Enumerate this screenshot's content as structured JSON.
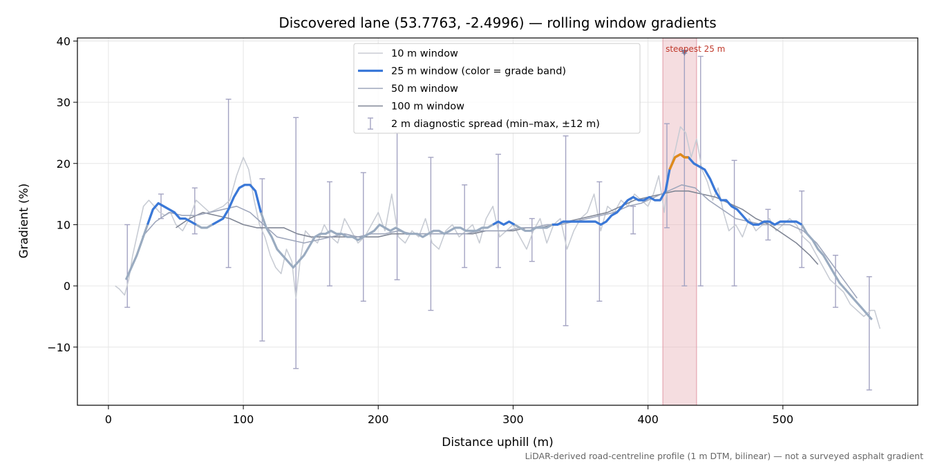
{
  "chart_data": {
    "type": "line",
    "title": "Discovered lane (53.7763, -2.4996) — rolling window gradients",
    "xlabel": "Distance uphill (m)",
    "ylabel": "Gradient (%)",
    "xlim": [
      -23,
      600
    ],
    "ylim": [
      -19.5,
      40.5
    ],
    "xticks": [
      0,
      100,
      200,
      300,
      400,
      500
    ],
    "xtick_labels": [
      "0",
      "100",
      "200",
      "300",
      "400",
      "500"
    ],
    "yticks": [
      -10,
      0,
      10,
      20,
      30,
      40
    ],
    "ytick_labels": [
      "−10",
      "0",
      "10",
      "20",
      "30",
      "40"
    ],
    "grid": true,
    "legend_position": "top-center",
    "footnote": "LiDAR-derived road-centreline profile (1 m DTM, bilinear) — not a surveyed asphalt gradient",
    "annotations": [
      {
        "text": "steepest 25 m",
        "x_start": 411,
        "x_end": 436,
        "peak_x": 427,
        "peak_y": 38,
        "color": "#cc2233",
        "band_color": "#e8b4bb"
      }
    ],
    "legend": [
      {
        "label": "10 m window",
        "color": "#c8ccd4",
        "style": "line"
      },
      {
        "label": "25 m window (color = grade band)",
        "color": "#3a78d8",
        "style": "thick-line"
      },
      {
        "label": "50 m window",
        "color": "#9ea6bb",
        "style": "line"
      },
      {
        "label": "100 m window",
        "color": "#808695",
        "style": "line"
      },
      {
        "label": "2 m diagnostic spread (min–max, ±12 m)",
        "color": "#a3a3c2",
        "style": "errorbar"
      }
    ],
    "series": [
      {
        "name": "10 m window",
        "color": "#c8ccd4",
        "x": [
          5,
          8,
          12,
          15,
          18,
          22,
          26,
          30,
          34,
          38,
          42,
          46,
          50,
          55,
          60,
          65,
          70,
          75,
          80,
          85,
          90,
          95,
          100,
          104,
          108,
          112,
          116,
          120,
          124,
          128,
          132,
          136,
          139,
          142,
          146,
          150,
          155,
          160,
          165,
          170,
          175,
          180,
          185,
          190,
          195,
          200,
          205,
          210,
          215,
          220,
          225,
          230,
          235,
          240,
          245,
          250,
          255,
          260,
          265,
          270,
          275,
          280,
          285,
          290,
          295,
          300,
          305,
          310,
          315,
          320,
          325,
          330,
          335,
          340,
          345,
          350,
          355,
          360,
          365,
          370,
          375,
          380,
          385,
          390,
          395,
          400,
          404,
          408,
          412,
          416,
          420,
          424,
          428,
          432,
          436,
          440,
          444,
          448,
          452,
          456,
          460,
          465,
          470,
          475,
          480,
          485,
          490,
          495,
          500,
          505,
          510,
          515,
          520,
          525,
          530,
          535,
          540,
          545,
          550,
          555,
          560,
          565,
          568,
          572
        ],
        "y": [
          0,
          -0.5,
          -1.5,
          1,
          5,
          9,
          13,
          14,
          13,
          12,
          11.5,
          12,
          10,
          9,
          11,
          14,
          13,
          12,
          12.5,
          13,
          14,
          18,
          21,
          19,
          14,
          10,
          8,
          5,
          3,
          2,
          6,
          4,
          -2,
          4,
          9,
          8,
          7,
          10,
          8,
          7,
          11,
          9,
          7,
          8,
          10,
          12,
          9,
          15,
          8,
          7,
          9,
          8,
          11,
          7,
          6,
          9,
          10,
          8,
          9,
          10,
          7,
          11,
          13,
          8,
          9,
          10,
          8,
          6,
          9,
          11,
          7,
          10,
          11,
          6,
          9,
          11,
          12,
          15,
          9,
          13,
          12,
          14,
          13,
          15,
          14,
          13,
          15,
          18,
          12,
          19,
          22,
          26,
          25,
          21,
          24,
          19,
          17,
          14,
          16,
          12,
          9,
          10,
          8,
          11,
          9,
          10,
          11,
          9,
          10,
          11,
          10,
          8,
          7,
          5,
          3,
          1,
          0,
          -1,
          -3,
          -4,
          -5,
          -4,
          -4,
          -7
        ]
      },
      {
        "name": "25 m window",
        "color": "#3a78d8",
        "thick": true,
        "highlight": {
          "from_x": 416,
          "to_x": 430,
          "color": "#e08a1a"
        },
        "x": [
          13,
          17,
          21,
          25,
          29,
          33,
          37,
          41,
          45,
          49,
          53,
          57,
          61,
          65,
          69,
          73,
          77,
          81,
          85,
          89,
          93,
          97,
          101,
          105,
          109,
          113,
          117,
          121,
          125,
          129,
          133,
          137,
          141,
          145,
          149,
          153,
          157,
          161,
          165,
          169,
          173,
          177,
          181,
          185,
          189,
          193,
          197,
          201,
          205,
          209,
          213,
          217,
          221,
          225,
          229,
          233,
          237,
          241,
          245,
          249,
          253,
          257,
          261,
          265,
          269,
          273,
          277,
          281,
          285,
          289,
          293,
          297,
          301,
          305,
          309,
          313,
          317,
          321,
          325,
          329,
          333,
          337,
          341,
          345,
          349,
          353,
          357,
          361,
          365,
          369,
          373,
          377,
          381,
          385,
          389,
          393,
          397,
          401,
          405,
          409,
          413,
          416,
          420,
          424,
          427,
          430,
          434,
          438,
          442,
          446,
          450,
          454,
          458,
          462,
          466,
          470,
          474,
          478,
          482,
          486,
          490,
          494,
          498,
          502,
          506,
          510,
          514,
          518,
          522,
          526,
          530,
          534,
          538,
          542,
          546,
          550,
          554,
          558,
          562,
          566
        ],
        "y": [
          1,
          3,
          5,
          7.5,
          10,
          12.5,
          13.5,
          13,
          12.5,
          12,
          11,
          11,
          10.5,
          10,
          9.5,
          9.5,
          10,
          10.5,
          11,
          12.5,
          14.5,
          16,
          16.5,
          16.5,
          15.5,
          12,
          9.5,
          8,
          6,
          5,
          4,
          3,
          4,
          5,
          6.5,
          8,
          8.5,
          8.5,
          9,
          8.5,
          8.5,
          8,
          8,
          7.5,
          8,
          8.5,
          9,
          10,
          9.5,
          9,
          9.5,
          9,
          8.5,
          8.5,
          8.5,
          8,
          8.5,
          9,
          9,
          8.5,
          9,
          9.5,
          9.5,
          9,
          9,
          9,
          9.5,
          9.5,
          10,
          10.5,
          10,
          10.5,
          10,
          9.5,
          9,
          9,
          9.5,
          9.5,
          9.5,
          10,
          10,
          10.5,
          10.5,
          10.5,
          10.5,
          10.5,
          10.5,
          10.5,
          10,
          10.5,
          11.5,
          12,
          13,
          14,
          14.5,
          14,
          14,
          14.5,
          14,
          14,
          15.5,
          19,
          21,
          21.5,
          21,
          21,
          20,
          19.5,
          19,
          17.5,
          15.5,
          14,
          14,
          13,
          12.5,
          11.5,
          10.5,
          10,
          10,
          10.5,
          10.5,
          10,
          10.5,
          10.5,
          10.5,
          10.5,
          10,
          8.5,
          7.5,
          6,
          5,
          3.5,
          2,
          0.5,
          -0.5,
          -1.5,
          -2.5,
          -3.5,
          -4.5,
          -5.5
        ]
      },
      {
        "name": "50 m window",
        "color": "#9ea6bb",
        "x": [
          25,
          35,
          45,
          55,
          65,
          75,
          85,
          95,
          105,
          115,
          125,
          135,
          145,
          155,
          165,
          175,
          185,
          195,
          205,
          215,
          225,
          235,
          245,
          255,
          265,
          275,
          285,
          295,
          305,
          315,
          325,
          335,
          345,
          355,
          365,
          375,
          385,
          395,
          405,
          415,
          425,
          435,
          445,
          455,
          465,
          475,
          485,
          495,
          505,
          515,
          525,
          535,
          545,
          555
        ],
        "y": [
          8,
          10.5,
          12,
          11.5,
          11.5,
          12,
          12.5,
          13,
          12,
          10,
          8,
          7.5,
          7,
          7.5,
          8,
          8.5,
          8,
          8.5,
          8.5,
          9,
          8.5,
          8.5,
          8.5,
          8.5,
          8.5,
          9,
          9,
          9,
          9.5,
          9.5,
          10,
          10,
          10.5,
          11,
          11.5,
          12,
          13,
          13.5,
          14.5,
          15.5,
          16.5,
          16,
          14,
          12.5,
          11,
          10.5,
          10,
          10,
          10,
          9,
          7,
          4,
          1,
          -2
        ]
      },
      {
        "name": "100 m window",
        "color": "#808695",
        "x": [
          50,
          60,
          70,
          80,
          90,
          100,
          110,
          120,
          130,
          140,
          150,
          160,
          170,
          180,
          190,
          200,
          210,
          220,
          230,
          240,
          250,
          260,
          270,
          280,
          290,
          300,
          310,
          320,
          330,
          340,
          350,
          360,
          370,
          380,
          390,
          400,
          410,
          420,
          430,
          440,
          450,
          460,
          470,
          480,
          490,
          500,
          510,
          520,
          526
        ],
        "y": [
          9.5,
          11,
          12,
          11.5,
          11,
          10,
          9.5,
          9.5,
          9.5,
          8.5,
          8,
          8,
          8,
          8,
          8,
          8,
          8.5,
          8.5,
          8.5,
          8.5,
          8.5,
          8.5,
          8.5,
          9,
          9,
          9,
          9.5,
          9.5,
          10,
          10.5,
          11,
          11.5,
          12,
          13,
          14,
          14.5,
          15,
          15.5,
          15.5,
          15,
          14.5,
          13.5,
          12.5,
          11,
          10,
          8.5,
          7,
          5,
          3.5
        ]
      }
    ],
    "errorbars": {
      "name": "2 m diagnostic spread (min–max, ±12 m)",
      "color": "#a3a3c2",
      "x": [
        14,
        39,
        64,
        89,
        114,
        139,
        164,
        189,
        214,
        239,
        264,
        289,
        314,
        339,
        364,
        389,
        414,
        427,
        439,
        464,
        489,
        514,
        539,
        564
      ],
      "low": [
        -3.5,
        11,
        8.5,
        3,
        -9,
        -13.5,
        0,
        -2.5,
        1,
        -4,
        3,
        3,
        4,
        -6.5,
        -2.5,
        8.5,
        9.5,
        0,
        0,
        0,
        7.5,
        3,
        -3.5,
        -17
      ],
      "high": [
        10,
        15,
        16,
        30.5,
        17.5,
        27.5,
        17,
        18.5,
        25,
        21,
        16.5,
        21.5,
        11,
        24.5,
        17,
        13,
        26.5,
        38,
        37.5,
        20.5,
        12.5,
        15.5,
        5,
        1.5
      ]
    }
  }
}
